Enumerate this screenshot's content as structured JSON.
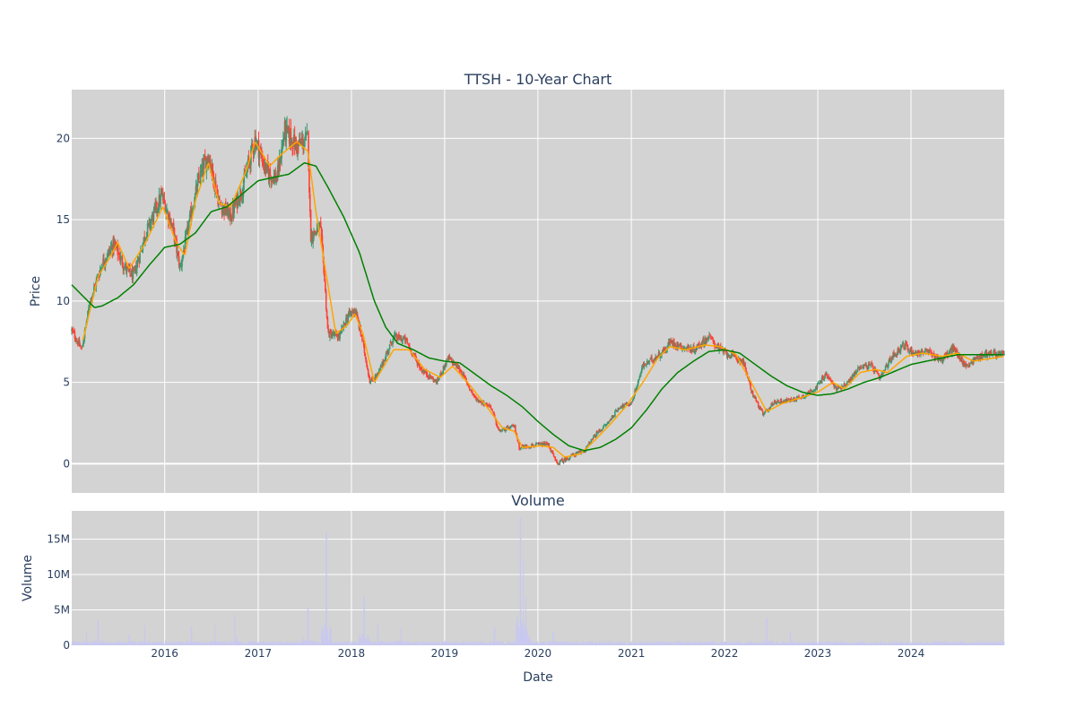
{
  "chart_data": [
    {
      "type": "candlestick",
      "title": "TTSH - 10-Year Chart",
      "xlabel": "",
      "ylabel": "Price",
      "xlim": [
        "2015-01-02",
        "2024-12-31"
      ],
      "ylim": [
        -1.8,
        23
      ],
      "y_ticks": [
        0,
        5,
        10,
        15,
        20
      ],
      "x_tick_labels": [
        "2016",
        "2017",
        "2018",
        "2019",
        "2020",
        "2021",
        "2022",
        "2023",
        "2024"
      ],
      "grid": true,
      "colors": {
        "up": "#3d9970",
        "down": "#ff4136",
        "ma_short": "#ffa500",
        "ma_long": "#008000",
        "plot_bg": "#d3d3d3"
      },
      "price_anchors": [
        [
          "2015-01-02",
          8.2
        ],
        [
          "2015-02-10",
          7.0
        ],
        [
          "2015-03-15",
          10.0
        ],
        [
          "2015-05-01",
          12.3
        ],
        [
          "2015-06-15",
          13.5
        ],
        [
          "2015-08-01",
          12.0
        ],
        [
          "2015-09-01",
          11.5
        ],
        [
          "2015-10-15",
          14.0
        ],
        [
          "2015-12-20",
          16.5
        ],
        [
          "2016-02-01",
          14.5
        ],
        [
          "2016-03-01",
          12.0
        ],
        [
          "2016-04-15",
          15.5
        ],
        [
          "2016-05-15",
          17.5
        ],
        [
          "2016-06-20",
          19.0
        ],
        [
          "2016-08-01",
          16.0
        ],
        [
          "2016-09-15",
          15.2
        ],
        [
          "2016-11-01",
          17.0
        ],
        [
          "2016-12-20",
          20.0
        ],
        [
          "2017-02-01",
          18.0
        ],
        [
          "2017-03-15",
          17.5
        ],
        [
          "2017-04-15",
          20.5
        ],
        [
          "2017-06-01",
          19.5
        ],
        [
          "2017-07-15",
          20.0
        ],
        [
          "2017-07-25",
          14.0
        ],
        [
          "2017-09-01",
          14.5
        ],
        [
          "2017-09-15",
          12.0
        ],
        [
          "2017-10-01",
          8.0
        ],
        [
          "2017-11-15",
          7.8
        ],
        [
          "2017-12-15",
          9.0
        ],
        [
          "2018-01-15",
          9.5
        ],
        [
          "2018-02-10",
          7.8
        ],
        [
          "2018-03-15",
          5.0
        ],
        [
          "2018-04-15",
          5.5
        ],
        [
          "2018-06-15",
          7.8
        ],
        [
          "2018-08-01",
          7.6
        ],
        [
          "2018-10-01",
          5.8
        ],
        [
          "2018-12-01",
          5.0
        ],
        [
          "2019-01-15",
          6.5
        ],
        [
          "2019-03-01",
          5.8
        ],
        [
          "2019-05-01",
          4.0
        ],
        [
          "2019-07-01",
          3.5
        ],
        [
          "2019-08-01",
          2.0
        ],
        [
          "2019-10-01",
          2.3
        ],
        [
          "2019-10-20",
          1.0
        ],
        [
          "2019-12-01",
          1.1
        ],
        [
          "2020-02-10",
          1.2
        ],
        [
          "2020-03-15",
          0.0
        ],
        [
          "2020-05-15",
          0.5
        ],
        [
          "2020-07-01",
          0.8
        ],
        [
          "2020-08-15",
          1.8
        ],
        [
          "2020-10-01",
          2.5
        ],
        [
          "2020-11-15",
          3.5
        ],
        [
          "2021-01-01",
          3.7
        ],
        [
          "2021-02-15",
          6.0
        ],
        [
          "2021-04-01",
          6.5
        ],
        [
          "2021-05-15",
          7.0
        ],
        [
          "2021-06-01",
          7.5
        ],
        [
          "2021-07-15",
          7.2
        ],
        [
          "2021-09-01",
          7.0
        ],
        [
          "2021-11-01",
          7.8
        ],
        [
          "2021-12-15",
          7.0
        ],
        [
          "2022-02-01",
          6.6
        ],
        [
          "2022-03-15",
          6.3
        ],
        [
          "2022-04-15",
          4.5
        ],
        [
          "2022-06-01",
          3.0
        ],
        [
          "2022-07-15",
          3.8
        ],
        [
          "2022-09-15",
          3.9
        ],
        [
          "2022-11-15",
          4.2
        ],
        [
          "2023-01-01",
          4.8
        ],
        [
          "2023-02-01",
          5.5
        ],
        [
          "2023-03-15",
          4.6
        ],
        [
          "2023-05-01",
          5.0
        ],
        [
          "2023-06-15",
          6.0
        ],
        [
          "2023-08-01",
          6.0
        ],
        [
          "2023-09-01",
          5.2
        ],
        [
          "2023-10-15",
          6.5
        ],
        [
          "2023-12-01",
          7.3
        ],
        [
          "2024-01-15",
          6.8
        ],
        [
          "2024-03-01",
          6.9
        ],
        [
          "2024-05-01",
          6.4
        ],
        [
          "2024-06-15",
          7.1
        ],
        [
          "2024-08-01",
          6.0
        ],
        [
          "2024-09-15",
          6.5
        ],
        [
          "2024-11-01",
          6.8
        ],
        [
          "2024-12-31",
          6.7
        ]
      ],
      "ma_short_anchors": [
        [
          "2015-02-15",
          7.6
        ],
        [
          "2015-04-15",
          11.5
        ],
        [
          "2015-06-01",
          12.7
        ],
        [
          "2015-07-01",
          13.6
        ],
        [
          "2015-08-15",
          12.0
        ],
        [
          "2015-10-15",
          13.5
        ],
        [
          "2015-12-25",
          15.8
        ],
        [
          "2016-02-15",
          13.6
        ],
        [
          "2016-03-20",
          12.8
        ],
        [
          "2016-05-01",
          16.2
        ],
        [
          "2016-06-20",
          18.5
        ],
        [
          "2016-08-01",
          16.0
        ],
        [
          "2016-09-15",
          15.8
        ],
        [
          "2016-11-15",
          18.0
        ],
        [
          "2016-12-20",
          19.8
        ],
        [
          "2017-02-15",
          18.3
        ],
        [
          "2017-04-01",
          19.0
        ],
        [
          "2017-06-01",
          19.8
        ],
        [
          "2017-07-15",
          19.2
        ],
        [
          "2017-08-15",
          15.5
        ],
        [
          "2017-10-01",
          11.0
        ],
        [
          "2017-11-01",
          8.0
        ],
        [
          "2017-12-15",
          8.5
        ],
        [
          "2018-01-15",
          9.2
        ],
        [
          "2018-02-15",
          8.0
        ],
        [
          "2018-04-01",
          5.0
        ],
        [
          "2018-06-15",
          7.0
        ],
        [
          "2018-08-15",
          7.0
        ],
        [
          "2018-10-15",
          5.8
        ],
        [
          "2018-12-15",
          5.3
        ],
        [
          "2019-02-01",
          6.0
        ],
        [
          "2019-04-01",
          5.0
        ],
        [
          "2019-06-15",
          3.5
        ],
        [
          "2019-08-15",
          2.2
        ],
        [
          "2019-10-01",
          2.0
        ],
        [
          "2019-11-01",
          1.0
        ],
        [
          "2020-01-15",
          1.1
        ],
        [
          "2020-03-01",
          1.0
        ],
        [
          "2020-04-15",
          0.4
        ],
        [
          "2020-06-15",
          0.6
        ],
        [
          "2020-08-15",
          1.5
        ],
        [
          "2020-10-15",
          2.5
        ],
        [
          "2020-12-15",
          3.6
        ],
        [
          "2021-02-15",
          5.0
        ],
        [
          "2021-04-15",
          6.5
        ],
        [
          "2021-06-01",
          7.2
        ],
        [
          "2021-08-01",
          7.0
        ],
        [
          "2021-10-15",
          7.3
        ],
        [
          "2021-12-15",
          7.2
        ],
        [
          "2022-02-15",
          6.7
        ],
        [
          "2022-04-15",
          5.0
        ],
        [
          "2022-06-15",
          3.2
        ],
        [
          "2022-08-15",
          3.7
        ],
        [
          "2022-10-15",
          4.0
        ],
        [
          "2023-01-01",
          4.4
        ],
        [
          "2023-03-01",
          5.0
        ],
        [
          "2023-04-15",
          4.6
        ],
        [
          "2023-06-15",
          5.6
        ],
        [
          "2023-08-15",
          5.8
        ],
        [
          "2023-10-01",
          5.6
        ],
        [
          "2023-12-15",
          6.6
        ],
        [
          "2024-02-15",
          6.8
        ],
        [
          "2024-05-01",
          6.6
        ],
        [
          "2024-07-01",
          6.8
        ],
        [
          "2024-09-01",
          6.3
        ],
        [
          "2024-12-31",
          6.6
        ]
      ],
      "ma_long_anchors": [
        [
          "2015-01-02",
          11.0
        ],
        [
          "2015-02-15",
          10.3
        ],
        [
          "2015-04-01",
          9.6
        ],
        [
          "2015-05-01",
          9.7
        ],
        [
          "2015-07-01",
          10.2
        ],
        [
          "2015-09-01",
          11.0
        ],
        [
          "2015-11-01",
          12.2
        ],
        [
          "2016-01-01",
          13.3
        ],
        [
          "2016-03-01",
          13.5
        ],
        [
          "2016-05-01",
          14.2
        ],
        [
          "2016-07-01",
          15.5
        ],
        [
          "2016-09-01",
          15.8
        ],
        [
          "2016-11-01",
          16.6
        ],
        [
          "2017-01-01",
          17.4
        ],
        [
          "2017-03-01",
          17.6
        ],
        [
          "2017-05-01",
          17.8
        ],
        [
          "2017-07-01",
          18.5
        ],
        [
          "2017-08-15",
          18.3
        ],
        [
          "2017-10-01",
          17.0
        ],
        [
          "2017-12-01",
          15.2
        ],
        [
          "2018-02-01",
          13.0
        ],
        [
          "2018-04-01",
          10.0
        ],
        [
          "2018-05-15",
          8.4
        ],
        [
          "2018-07-01",
          7.4
        ],
        [
          "2018-09-01",
          7.0
        ],
        [
          "2018-11-01",
          6.5
        ],
        [
          "2019-01-01",
          6.3
        ],
        [
          "2019-03-01",
          6.2
        ],
        [
          "2019-05-01",
          5.5
        ],
        [
          "2019-07-01",
          4.8
        ],
        [
          "2019-09-01",
          4.2
        ],
        [
          "2019-11-01",
          3.5
        ],
        [
          "2020-01-01",
          2.6
        ],
        [
          "2020-03-01",
          1.8
        ],
        [
          "2020-05-01",
          1.1
        ],
        [
          "2020-07-01",
          0.8
        ],
        [
          "2020-09-01",
          1.0
        ],
        [
          "2020-11-01",
          1.5
        ],
        [
          "2021-01-01",
          2.2
        ],
        [
          "2021-03-01",
          3.3
        ],
        [
          "2021-05-01",
          4.6
        ],
        [
          "2021-07-01",
          5.6
        ],
        [
          "2021-09-01",
          6.3
        ],
        [
          "2021-11-01",
          6.9
        ],
        [
          "2022-01-01",
          7.0
        ],
        [
          "2022-03-01",
          6.8
        ],
        [
          "2022-05-01",
          6.1
        ],
        [
          "2022-07-01",
          5.4
        ],
        [
          "2022-09-01",
          4.8
        ],
        [
          "2022-11-01",
          4.4
        ],
        [
          "2023-01-01",
          4.2
        ],
        [
          "2023-03-01",
          4.3
        ],
        [
          "2023-05-01",
          4.6
        ],
        [
          "2023-07-01",
          5.0
        ],
        [
          "2023-09-01",
          5.3
        ],
        [
          "2023-11-01",
          5.7
        ],
        [
          "2024-01-01",
          6.1
        ],
        [
          "2024-03-01",
          6.3
        ],
        [
          "2024-05-01",
          6.5
        ],
        [
          "2024-07-01",
          6.7
        ],
        [
          "2024-09-01",
          6.7
        ],
        [
          "2024-12-31",
          6.7
        ]
      ]
    },
    {
      "type": "bar",
      "title": "Volume",
      "xlabel": "Date",
      "ylabel": "Volume",
      "xlim": [
        "2015-01-02",
        "2024-12-31"
      ],
      "ylim": [
        0,
        19000000
      ],
      "y_tick_labels": [
        "0",
        "5M",
        "10M",
        "15M"
      ],
      "x_tick_labels": [
        "2016",
        "2017",
        "2018",
        "2019",
        "2020",
        "2021",
        "2022",
        "2023",
        "2024"
      ],
      "grid": true,
      "colors": {
        "bar": "#c8c8f0",
        "plot_bg": "#d3d3d3"
      },
      "base_volume": 400000,
      "spikes": [
        [
          "2015-03-01",
          1800000
        ],
        [
          "2015-04-15",
          3500000
        ],
        [
          "2015-08-15",
          1500000
        ],
        [
          "2015-10-15",
          2800000
        ],
        [
          "2016-04-15",
          2700000
        ],
        [
          "2016-07-15",
          2800000
        ],
        [
          "2016-10-01",
          4400000
        ],
        [
          "2017-07-15",
          5300000
        ],
        [
          "2017-09-25",
          16000000
        ],
        [
          "2017-10-10",
          2500000
        ],
        [
          "2018-02-20",
          7000000
        ],
        [
          "2018-04-15",
          2900000
        ],
        [
          "2018-07-15",
          2700000
        ],
        [
          "2019-07-15",
          2500000
        ],
        [
          "2019-10-25",
          18000000
        ],
        [
          "2019-11-05",
          12000000
        ],
        [
          "2019-11-15",
          7000000
        ],
        [
          "2020-03-01",
          2000000
        ],
        [
          "2022-06-15",
          3900000
        ],
        [
          "2022-09-15",
          2000000
        ],
        [
          "2024-12-20",
          1000000
        ]
      ]
    }
  ]
}
